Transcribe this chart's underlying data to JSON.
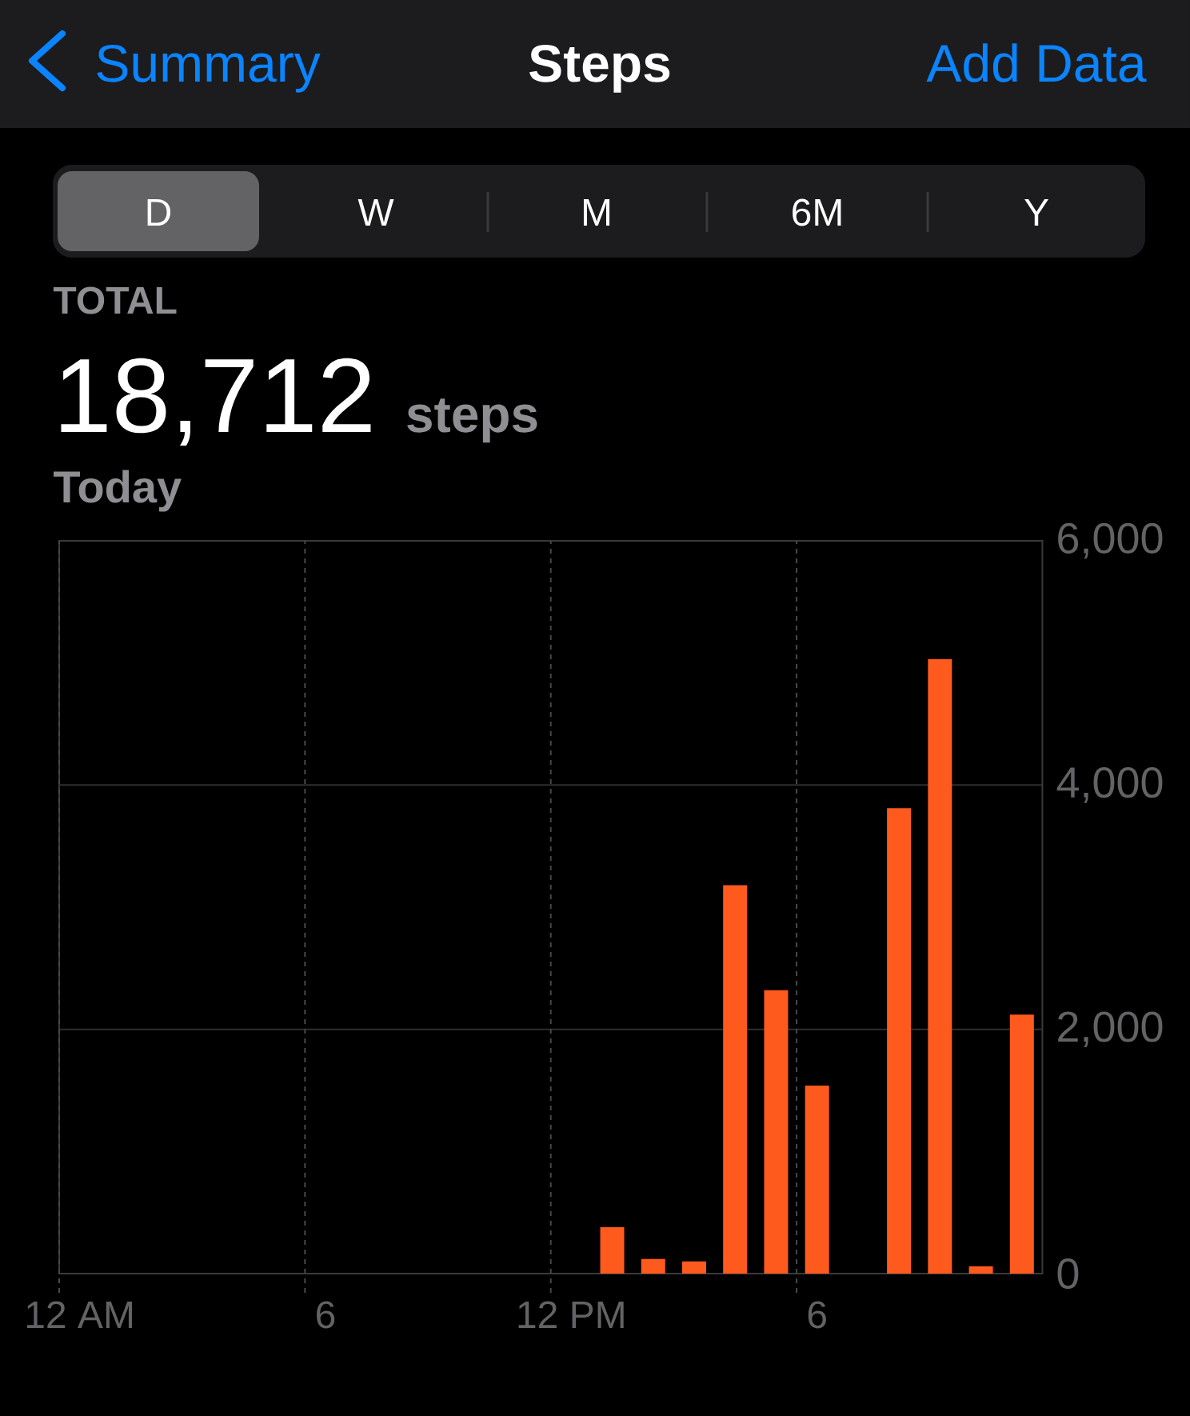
{
  "chart_data": {
    "type": "bar",
    "title": "Steps",
    "annotations": [
      "Summary",
      "Add Data",
      "D",
      "W",
      "M",
      "6M",
      "Y",
      "TOTAL",
      "18,712",
      "steps",
      "Today"
    ],
    "categories": [
      "12 AM",
      null,
      null,
      null,
      null,
      null,
      "6",
      null,
      null,
      null,
      null,
      null,
      "12 PM",
      null,
      null,
      null,
      null,
      null,
      "6",
      null,
      null,
      null,
      null,
      null
    ],
    "values": [
      null,
      null,
      null,
      null,
      null,
      null,
      null,
      null,
      null,
      null,
      null,
      null,
      null,
      380,
      120,
      100,
      3180,
      2320,
      1540,
      null,
      3810,
      5030,
      60,
      2120
    ],
    "color": "#ff5a1e",
    "ylim": [
      0,
      6000
    ],
    "yticks": [
      0,
      {
        "value": 2000,
        "label": "2,000"
      },
      {
        "value": 4000,
        "label": "4,000"
      },
      {
        "value": 6000,
        "label": "6,000"
      }
    ],
    "grid": true
  }
}
